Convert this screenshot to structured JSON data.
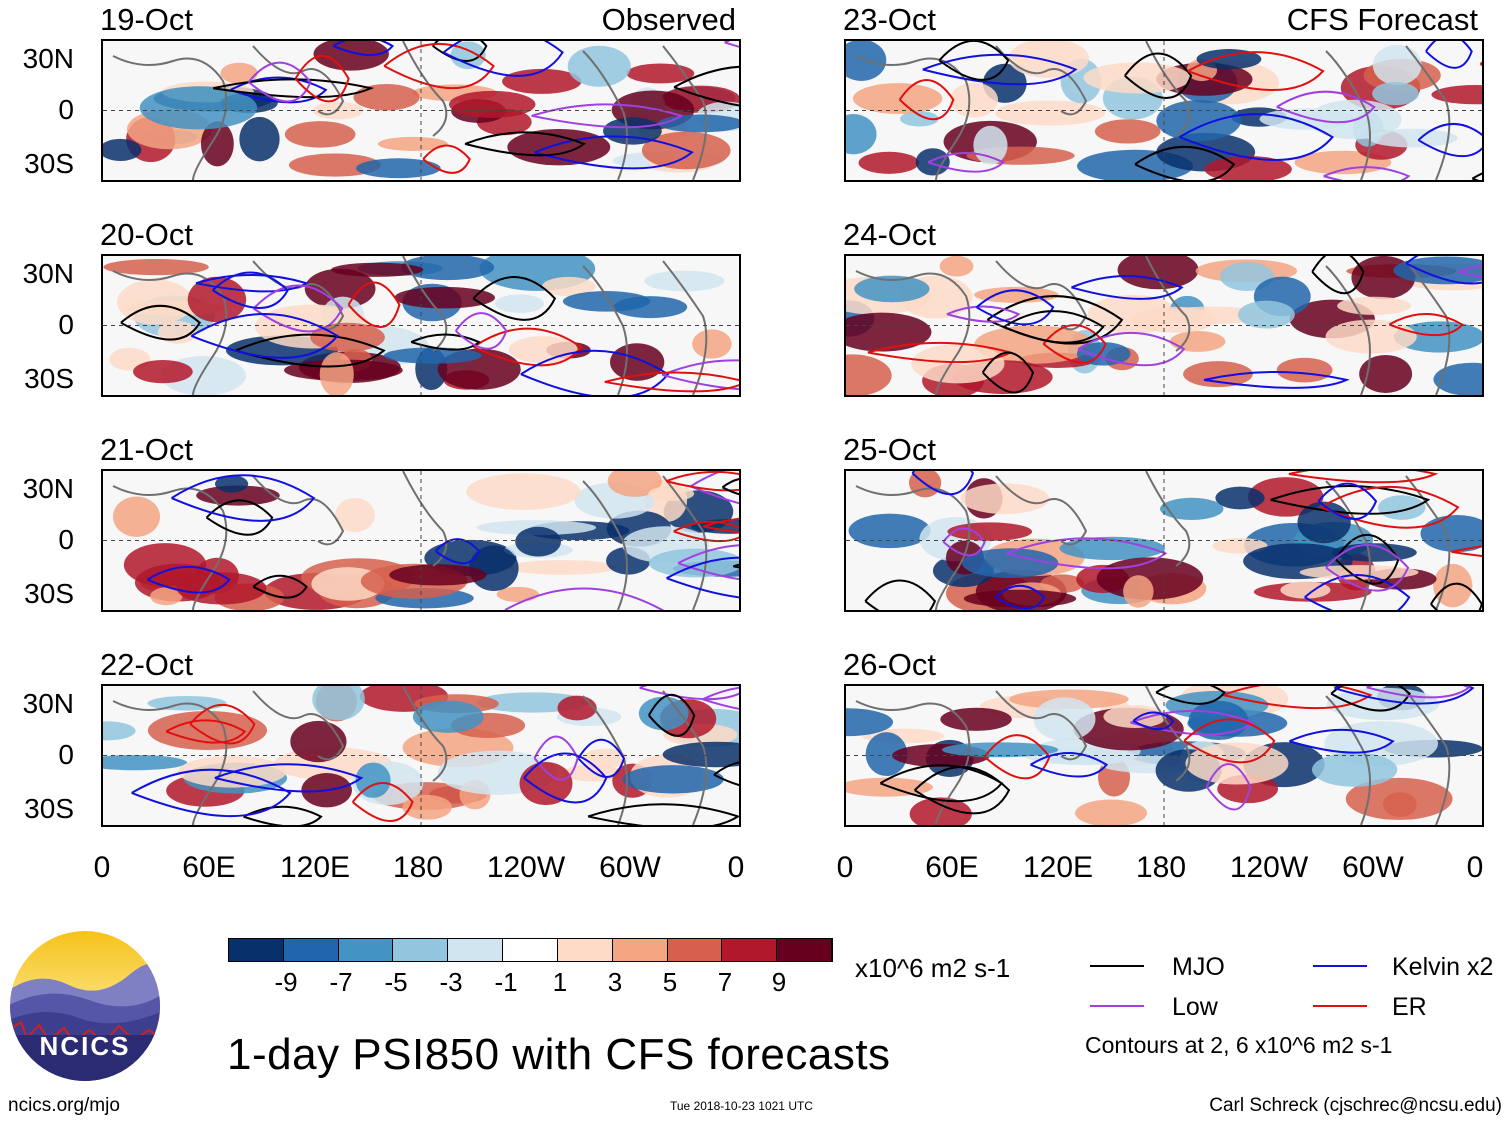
{
  "header": {
    "left_title": "Observed",
    "right_title": "CFS Forecast"
  },
  "panels": {
    "left": [
      {
        "date": "19-Oct"
      },
      {
        "date": "20-Oct"
      },
      {
        "date": "21-Oct"
      },
      {
        "date": "22-Oct"
      }
    ],
    "right": [
      {
        "date": "23-Oct"
      },
      {
        "date": "24-Oct"
      },
      {
        "date": "25-Oct"
      },
      {
        "date": "26-Oct"
      }
    ]
  },
  "axes": {
    "lat_labels": [
      "30N",
      "0",
      "30S"
    ],
    "lon_labels": [
      "0",
      "60E",
      "120E",
      "180",
      "120W",
      "60W",
      "0"
    ]
  },
  "colorbar": {
    "labels": [
      "-9",
      "-7",
      "-5",
      "-3",
      "-1",
      "1",
      "3",
      "5",
      "7",
      "9"
    ],
    "colors": [
      "#08306b",
      "#2166ac",
      "#4393c3",
      "#92c5de",
      "#d1e5f0",
      "#ffffff",
      "#fddbc7",
      "#f4a582",
      "#d6604d",
      "#b2182b",
      "#67001f"
    ],
    "units": "x10^6 m2 s-1"
  },
  "legend": {
    "items": [
      {
        "label": "MJO",
        "color": "#000000"
      },
      {
        "label": "Kelvin x2",
        "color": "#1010e0"
      },
      {
        "label": "Low",
        "color": "#a040e0"
      },
      {
        "label": "ER",
        "color": "#e01010"
      }
    ],
    "note": "Contours at 2, 6 x10^6 m2 s-1"
  },
  "title": "1-day PSI850 with CFS forecasts",
  "footer": {
    "left": "ncics.org/mjo",
    "middle": "Tue 2018-10-23 1021 UTC",
    "right": "Carl Schreck (cjschrec@ncsu.edu)"
  },
  "logo": {
    "text": "NCICS"
  }
}
